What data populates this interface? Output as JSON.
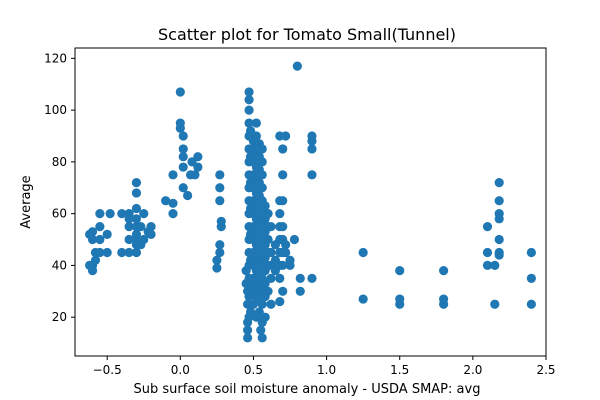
{
  "chart_data": {
    "type": "scatter",
    "title": "Scatter plot for Tomato Small(Tunnel)",
    "xlabel": "Sub surface soil moisture anomaly - USDA SMAP: avg",
    "ylabel": "Average",
    "xlim": [
      -0.72,
      2.5
    ],
    "ylim": [
      5,
      124
    ],
    "xticks": [
      -0.5,
      0.0,
      0.5,
      1.0,
      1.5,
      2.0,
      2.5
    ],
    "xtick_labels": [
      "−0.5",
      "0.0",
      "0.5",
      "1.0",
      "1.5",
      "2.0",
      "2.5"
    ],
    "yticks": [
      20,
      40,
      60,
      80,
      100,
      120
    ],
    "ytick_labels": [
      "20",
      "40",
      "60",
      "80",
      "100",
      "120"
    ],
    "grid": false,
    "marker_color": "#1f77b4",
    "series": [
      {
        "points": [
          [
            -0.6,
            40
          ],
          [
            -0.6,
            38
          ],
          [
            -0.6,
            50
          ],
          [
            -0.6,
            53
          ],
          [
            -0.55,
            45
          ],
          [
            -0.55,
            50
          ],
          [
            -0.55,
            55
          ],
          [
            -0.55,
            60
          ],
          [
            -0.62,
            40
          ],
          [
            -0.62,
            52
          ],
          [
            -0.58,
            42
          ],
          [
            -0.58,
            45
          ],
          [
            -0.5,
            45
          ],
          [
            -0.5,
            52
          ],
          [
            -0.48,
            60
          ],
          [
            -0.4,
            45
          ],
          [
            -0.4,
            60
          ],
          [
            -0.35,
            45
          ],
          [
            -0.35,
            50
          ],
          [
            -0.35,
            55
          ],
          [
            -0.35,
            58
          ],
          [
            -0.35,
            60
          ],
          [
            -0.3,
            45
          ],
          [
            -0.3,
            48
          ],
          [
            -0.3,
            50
          ],
          [
            -0.3,
            52
          ],
          [
            -0.3,
            55
          ],
          [
            -0.3,
            58
          ],
          [
            -0.3,
            62
          ],
          [
            -0.3,
            68
          ],
          [
            -0.3,
            72
          ],
          [
            -0.27,
            48
          ],
          [
            -0.27,
            55
          ],
          [
            -0.25,
            50
          ],
          [
            -0.25,
            60
          ],
          [
            -0.22,
            53
          ],
          [
            -0.2,
            52
          ],
          [
            -0.2,
            55
          ],
          [
            -0.1,
            65
          ],
          [
            -0.05,
            60
          ],
          [
            -0.05,
            64
          ],
          [
            -0.05,
            75
          ],
          [
            0.0,
            93
          ],
          [
            0.0,
            95
          ],
          [
            0.0,
            107
          ],
          [
            0.02,
            70
          ],
          [
            0.02,
            78
          ],
          [
            0.02,
            82
          ],
          [
            0.02,
            85
          ],
          [
            0.02,
            90
          ],
          [
            0.05,
            67
          ],
          [
            0.07,
            75
          ],
          [
            0.08,
            80
          ],
          [
            0.1,
            75
          ],
          [
            0.12,
            78
          ],
          [
            0.12,
            82
          ],
          [
            0.25,
            39
          ],
          [
            0.25,
            42
          ],
          [
            0.27,
            45
          ],
          [
            0.28,
            55
          ],
          [
            0.28,
            57
          ],
          [
            0.27,
            65
          ],
          [
            0.27,
            70
          ],
          [
            0.27,
            75
          ],
          [
            0.27,
            48
          ],
          [
            0.45,
            33
          ],
          [
            0.45,
            38
          ],
          [
            0.46,
            25
          ],
          [
            0.46,
            30
          ],
          [
            0.47,
            20
          ],
          [
            0.47,
            28
          ],
          [
            0.47,
            35
          ],
          [
            0.47,
            40
          ],
          [
            0.47,
            45
          ],
          [
            0.47,
            50
          ],
          [
            0.47,
            55
          ],
          [
            0.47,
            60
          ],
          [
            0.47,
            65
          ],
          [
            0.47,
            70
          ],
          [
            0.47,
            75
          ],
          [
            0.47,
            80
          ],
          [
            0.47,
            85
          ],
          [
            0.47,
            90
          ],
          [
            0.47,
            95
          ],
          [
            0.47,
            100
          ],
          [
            0.47,
            104
          ],
          [
            0.47,
            107
          ],
          [
            0.46,
            15
          ],
          [
            0.46,
            12
          ],
          [
            0.46,
            18
          ],
          [
            0.48,
            22
          ],
          [
            0.48,
            32
          ],
          [
            0.48,
            42
          ],
          [
            0.48,
            52
          ],
          [
            0.48,
            62
          ],
          [
            0.48,
            72
          ],
          [
            0.48,
            82
          ],
          [
            0.48,
            92
          ],
          [
            0.5,
            25
          ],
          [
            0.5,
            30
          ],
          [
            0.5,
            35
          ],
          [
            0.5,
            40
          ],
          [
            0.5,
            45
          ],
          [
            0.5,
            50
          ],
          [
            0.5,
            55
          ],
          [
            0.5,
            60
          ],
          [
            0.5,
            65
          ],
          [
            0.5,
            70
          ],
          [
            0.5,
            75
          ],
          [
            0.5,
            80
          ],
          [
            0.5,
            85
          ],
          [
            0.5,
            88
          ],
          [
            0.52,
            20
          ],
          [
            0.52,
            28
          ],
          [
            0.52,
            33
          ],
          [
            0.52,
            38
          ],
          [
            0.52,
            43
          ],
          [
            0.52,
            48
          ],
          [
            0.52,
            53
          ],
          [
            0.52,
            58
          ],
          [
            0.52,
            63
          ],
          [
            0.52,
            68
          ],
          [
            0.52,
            73
          ],
          [
            0.52,
            78
          ],
          [
            0.52,
            83
          ],
          [
            0.52,
            90
          ],
          [
            0.52,
            95
          ],
          [
            0.54,
            22
          ],
          [
            0.54,
            27
          ],
          [
            0.54,
            32
          ],
          [
            0.54,
            37
          ],
          [
            0.54,
            42
          ],
          [
            0.54,
            47
          ],
          [
            0.54,
            52
          ],
          [
            0.54,
            57
          ],
          [
            0.54,
            62
          ],
          [
            0.54,
            67
          ],
          [
            0.54,
            72
          ],
          [
            0.54,
            77
          ],
          [
            0.54,
            82
          ],
          [
            0.54,
            87
          ],
          [
            0.55,
            15
          ],
          [
            0.56,
            12
          ],
          [
            0.56,
            18
          ],
          [
            0.56,
            25
          ],
          [
            0.56,
            30
          ],
          [
            0.56,
            35
          ],
          [
            0.56,
            40
          ],
          [
            0.56,
            45
          ],
          [
            0.56,
            50
          ],
          [
            0.56,
            55
          ],
          [
            0.56,
            60
          ],
          [
            0.56,
            65
          ],
          [
            0.56,
            70
          ],
          [
            0.56,
            75
          ],
          [
            0.56,
            80
          ],
          [
            0.56,
            85
          ],
          [
            0.58,
            20
          ],
          [
            0.58,
            28
          ],
          [
            0.58,
            33
          ],
          [
            0.58,
            38
          ],
          [
            0.58,
            43
          ],
          [
            0.58,
            48
          ],
          [
            0.58,
            53
          ],
          [
            0.58,
            58
          ],
          [
            0.58,
            63
          ],
          [
            0.6,
            30
          ],
          [
            0.6,
            40
          ],
          [
            0.6,
            45
          ],
          [
            0.6,
            50
          ],
          [
            0.6,
            55
          ],
          [
            0.6,
            60
          ],
          [
            0.62,
            25
          ],
          [
            0.62,
            35
          ],
          [
            0.62,
            40
          ],
          [
            0.62,
            45
          ],
          [
            0.62,
            55
          ],
          [
            0.65,
            38
          ],
          [
            0.65,
            42
          ],
          [
            0.65,
            48
          ],
          [
            0.68,
            26
          ],
          [
            0.68,
            35
          ],
          [
            0.68,
            40
          ],
          [
            0.68,
            45
          ],
          [
            0.68,
            50
          ],
          [
            0.68,
            55
          ],
          [
            0.68,
            60
          ],
          [
            0.68,
            65
          ],
          [
            0.68,
            90
          ],
          [
            0.7,
            30
          ],
          [
            0.7,
            40
          ],
          [
            0.7,
            45
          ],
          [
            0.7,
            50
          ],
          [
            0.7,
            55
          ],
          [
            0.7,
            65
          ],
          [
            0.7,
            75
          ],
          [
            0.7,
            85
          ],
          [
            0.72,
            90
          ],
          [
            0.72,
            45
          ],
          [
            0.72,
            48
          ],
          [
            0.75,
            40
          ],
          [
            0.75,
            42
          ],
          [
            0.78,
            50
          ],
          [
            0.8,
            117
          ],
          [
            0.82,
            30
          ],
          [
            0.82,
            35
          ],
          [
            0.9,
            35
          ],
          [
            0.9,
            75
          ],
          [
            0.9,
            85
          ],
          [
            0.9,
            88
          ],
          [
            0.9,
            90
          ],
          [
            1.25,
            27
          ],
          [
            1.25,
            45
          ],
          [
            1.5,
            25
          ],
          [
            1.5,
            27
          ],
          [
            1.5,
            38
          ],
          [
            1.8,
            25
          ],
          [
            1.8,
            27
          ],
          [
            1.8,
            38
          ],
          [
            2.1,
            40
          ],
          [
            2.1,
            45
          ],
          [
            2.1,
            55
          ],
          [
            2.15,
            25
          ],
          [
            2.15,
            40
          ],
          [
            2.18,
            44
          ],
          [
            2.18,
            45
          ],
          [
            2.18,
            50
          ],
          [
            2.18,
            58
          ],
          [
            2.18,
            60
          ],
          [
            2.18,
            65
          ],
          [
            2.18,
            72
          ],
          [
            2.4,
            25
          ],
          [
            2.4,
            35
          ],
          [
            2.4,
            45
          ]
        ]
      }
    ]
  }
}
